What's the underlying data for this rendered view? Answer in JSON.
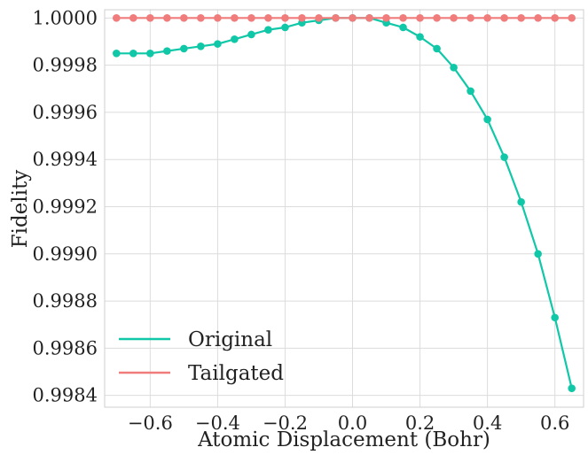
{
  "chart_data": {
    "type": "line",
    "title": "",
    "xlabel": "Atomic Displacement (Bohr)",
    "ylabel": "Fidelity",
    "xlim": [
      -0.735,
      0.685
    ],
    "ylim": [
      0.99835,
      1.000035
    ],
    "grid": true,
    "legend_position": "bottom-left",
    "x_ticks": [
      -0.6,
      -0.4,
      -0.2,
      0.0,
      0.2,
      0.4,
      0.6
    ],
    "x_tick_labels": [
      "−0.6",
      "−0.4",
      "−0.2",
      "0.0",
      "0.2",
      "0.4",
      "0.6"
    ],
    "y_ticks": [
      0.9984,
      0.9986,
      0.9988,
      0.999,
      0.9992,
      0.9994,
      0.9996,
      0.9998,
      1.0
    ],
    "y_tick_labels": [
      "0.9984",
      "0.9986",
      "0.9988",
      "0.9990",
      "0.9992",
      "0.9994",
      "0.9996",
      "0.9998",
      "1.0000"
    ],
    "x": [
      -0.7,
      -0.65,
      -0.6,
      -0.55,
      -0.5,
      -0.45,
      -0.4,
      -0.35,
      -0.3,
      -0.25,
      -0.2,
      -0.15,
      -0.1,
      -0.05,
      0.0,
      0.05,
      0.1,
      0.15,
      0.2,
      0.25,
      0.3,
      0.35,
      0.4,
      0.45,
      0.5,
      0.55,
      0.6,
      0.65
    ],
    "series": [
      {
        "name": "Original",
        "color": "#10c8a8",
        "values": [
          0.99985,
          0.99985,
          0.99985,
          0.99986,
          0.99987,
          0.99988,
          0.99989,
          0.99991,
          0.99993,
          0.99995,
          0.99996,
          0.99998,
          0.99999,
          1.0,
          1.0,
          1.0,
          0.99998,
          0.99996,
          0.99992,
          0.99987,
          0.99979,
          0.99969,
          0.99957,
          0.99941,
          0.99922,
          0.999,
          0.99873,
          0.99843
        ]
      },
      {
        "name": "Tailgated",
        "color": "#f07c7c",
        "values": [
          1.0,
          1.0,
          1.0,
          1.0,
          1.0,
          1.0,
          1.0,
          1.0,
          1.0,
          1.0,
          1.0,
          1.0,
          1.0,
          1.0,
          1.0,
          1.0,
          1.0,
          1.0,
          1.0,
          1.0,
          1.0,
          1.0,
          1.0,
          1.0,
          1.0,
          1.0,
          1.0,
          1.0
        ]
      }
    ]
  }
}
